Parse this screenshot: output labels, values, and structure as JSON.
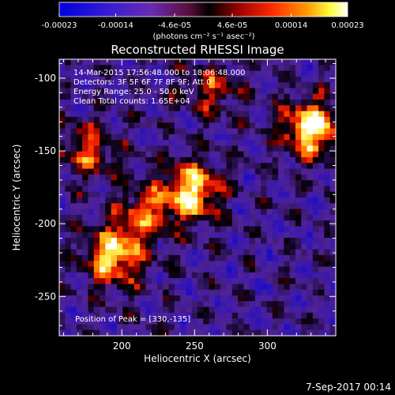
{
  "colorbar": {
    "ticks": [
      "-0.00023",
      "-0.00014",
      "-4.6e-05",
      "4.6e-05",
      "0.00014",
      "0.00023"
    ],
    "unit_label": "(photons cm⁻² s⁻¹ asec⁻²)",
    "range": [
      -0.00023,
      0.00023
    ]
  },
  "chart_data": {
    "type": "heatmap",
    "title": "Reconstructed RHESSI Image",
    "xlabel": "Heliocentric X (arcsec)",
    "ylabel": "Heliocentric Y (arcsec)",
    "xlim": [
      157,
      347
    ],
    "ylim": [
      -277,
      -87
    ],
    "x_ticks": [
      "200",
      "250",
      "300"
    ],
    "x_tick_values": [
      200,
      250,
      300
    ],
    "y_ticks": [
      "-100",
      "-150",
      "-200",
      "-250"
    ],
    "y_tick_values": [
      -100,
      -150,
      -200,
      -250
    ],
    "sources": [
      {
        "x": 330,
        "y": -135,
        "level": 1.0
      },
      {
        "x": 248,
        "y": -178,
        "level": 0.95
      },
      {
        "x": 195,
        "y": -222,
        "level": 0.9
      },
      {
        "x": 178,
        "y": -150,
        "level": 0.55
      },
      {
        "x": 262,
        "y": -107,
        "level": 0.45
      },
      {
        "x": 215,
        "y": -193,
        "level": 0.55
      }
    ],
    "annotations": [
      "14-Mar-2015 17:56:48.000 to 18:06:48.000",
      "Detectors: 3F 5F 6F 7F 8F 9F; Att 0",
      "Energy Range: 25.0 - 50.0 keV",
      "Clean    Total counts: 1.65E+04"
    ],
    "peak_label": "Position of Peak = [330,-135]",
    "colormap": [
      "#0000ff",
      "#5a2aa8",
      "#8a0000",
      "#ff2a00",
      "#ff8c00",
      "#ffff66",
      "#ffffff"
    ]
  },
  "footer": {
    "date": "7-Sep-2017 00:14"
  }
}
